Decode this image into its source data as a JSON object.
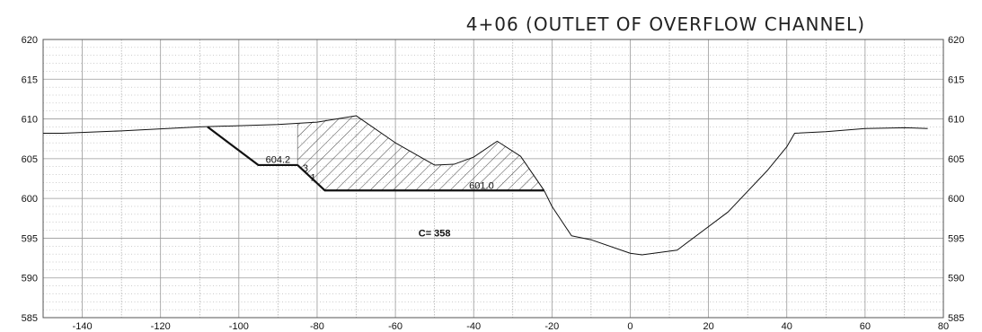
{
  "title": "4+06 (OUTLET OF OVERFLOW CHANNEL)",
  "chart_data": {
    "type": "line",
    "title": "4+06 (OUTLET OF OVERFLOW CHANNEL)",
    "xlabel": "",
    "ylabel": "",
    "xlim": [
      -150,
      80
    ],
    "ylim": [
      585,
      620
    ],
    "grid": true,
    "x_ticks": [
      -140,
      -120,
      -100,
      -80,
      -60,
      -40,
      -20,
      0,
      20,
      40,
      60,
      80
    ],
    "x_tick_labels": [
      "-140",
      "-120",
      "-100",
      "-80",
      "-60",
      "-40",
      "-20",
      "0",
      "20",
      "40",
      "60",
      "80"
    ],
    "y_ticks": [
      585,
      590,
      595,
      600,
      605,
      610,
      615,
      620
    ],
    "y_tick_labels": [
      "585",
      "590",
      "595",
      "600",
      "605",
      "610",
      "615",
      "620"
    ],
    "series": [
      {
        "role": "existing-ground",
        "x": [
          -150,
          -145,
          -130,
          -110,
          -90,
          -80,
          -70,
          -60,
          -50,
          -45,
          -40,
          -34,
          -28,
          -22,
          -20,
          -15,
          -10,
          0,
          3,
          12,
          25,
          35,
          40,
          42,
          50,
          60,
          70,
          76
        ],
        "y": [
          608.2,
          608.2,
          608.5,
          609.0,
          609.3,
          609.6,
          610.4,
          607.0,
          604.2,
          604.3,
          605.2,
          607.2,
          605.3,
          601.0,
          599.0,
          595.3,
          594.8,
          593.1,
          592.9,
          593.5,
          598.3,
          603.5,
          606.5,
          608.2,
          608.4,
          608.8,
          608.9,
          608.8
        ]
      },
      {
        "role": "proposed-grade",
        "x": [
          -108,
          -95,
          -85,
          -78,
          -22
        ],
        "y": [
          609.0,
          604.2,
          604.2,
          601.0,
          601.0
        ]
      }
    ],
    "fill_region": {
      "pattern": "hatch",
      "x": [
        -85,
        -70,
        -60,
        -50,
        -45,
        -40,
        -34,
        -28,
        -22,
        -78,
        -85
      ],
      "y": [
        609.4,
        610.4,
        607.0,
        604.2,
        604.3,
        605.2,
        607.2,
        605.3,
        601.0,
        601.0,
        604.2
      ]
    },
    "annotations": [
      {
        "text": "604.2",
        "x": -90,
        "y": 604.5
      },
      {
        "text": "3",
        "x": -83,
        "y": 603.4
      },
      {
        "text": "1",
        "x": -81,
        "y": 602.2
      },
      {
        "text": "601.0",
        "x": -38,
        "y": 601.2
      },
      {
        "text": "C= 358",
        "x": -50,
        "y": 595.2
      }
    ]
  }
}
